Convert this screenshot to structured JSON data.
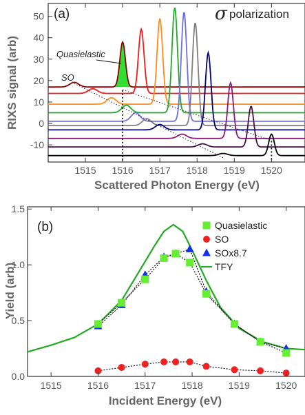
{
  "chart_data": [
    {
      "panel": "(a)",
      "type": "line",
      "title_symbol": "σ",
      "title": "polarization",
      "xlabel": "Scattered Photon Energy (eV)",
      "ylabel": "RIXS signal (arb)",
      "xlim": [
        1514.0,
        1520.9
      ],
      "ylim": [
        -18,
        56
      ],
      "xticks": [
        "1515",
        "1516",
        "1517",
        "1518",
        "1519",
        "1520"
      ],
      "yticks": [
        "-10",
        "0",
        "10",
        "20",
        "30",
        "40",
        "50"
      ],
      "annotations": [
        "Quasielastic",
        "SO"
      ],
      "series": [
        {
          "incident_energy": 1516.0,
          "color": "#8b0000",
          "offset": 17,
          "elastic_height": 21,
          "so_height": 2.2
        },
        {
          "incident_energy": 1516.5,
          "color": "#ee1c1c",
          "offset": 14,
          "elastic_height": 30,
          "so_height": 2.2
        },
        {
          "incident_energy": 1517.0,
          "color": "#ff8c1a",
          "offset": 9,
          "elastic_height": 40,
          "so_height": 3.0
        },
        {
          "incident_energy": 1517.4,
          "color": "#22a82a",
          "offset": 5,
          "elastic_height": 49,
          "so_height": 3.5
        },
        {
          "incident_energy": 1517.65,
          "color": "#6f6fe8",
          "offset": 1,
          "elastic_height": 51,
          "so_height": 4.0
        },
        {
          "incident_energy": 1517.95,
          "color": "#808080",
          "offset": -1,
          "elastic_height": 48,
          "so_height": 3.2
        },
        {
          "incident_energy": 1518.3,
          "color": "#000080",
          "offset": -3,
          "elastic_height": 36,
          "so_height": 2.5
        },
        {
          "incident_energy": 1518.9,
          "color": "#8b1a7a",
          "offset": -7,
          "elastic_height": 26,
          "so_height": 2.0
        },
        {
          "incident_energy": 1519.45,
          "color": "#4a0f40",
          "offset": -11,
          "elastic_height": 19,
          "so_height": 1.5
        },
        {
          "incident_energy": 1520.0,
          "color": "#000000",
          "offset": -15,
          "elastic_height": 10,
          "so_height": 1.0
        }
      ],
      "so_shift_eV": 1.3,
      "quasielastic_marker_x": 1516.0,
      "dotted_guides": [
        {
          "from": [
            1516.0,
            15.7
          ],
          "to": [
            1520.0,
            -8
          ]
        },
        {
          "from": [
            1514.7,
            18.7
          ],
          "to": [
            1518.7,
            -16
          ]
        }
      ]
    },
    {
      "panel": "(b)",
      "type": "scatter",
      "xlabel": "Incident Energy (eV)",
      "ylabel": "Yield (arb)",
      "xlim": [
        1514.5,
        1520.4
      ],
      "ylim": [
        0,
        1.52
      ],
      "xticks": [
        "1515",
        "1516",
        "1517",
        "1518",
        "1519",
        "1520"
      ],
      "yticks": [
        "0.0",
        "0.5",
        "1.0",
        "1.5"
      ],
      "legend_position": "top-right",
      "series": [
        {
          "name": "Quasielastic",
          "marker": "square",
          "color": "#66ee33",
          "x": [
            1516.0,
            1516.5,
            1517.0,
            1517.4,
            1517.65,
            1517.95,
            1518.3,
            1518.9,
            1519.45,
            1520.0
          ],
          "y": [
            0.47,
            0.66,
            0.87,
            1.06,
            1.1,
            1.02,
            0.74,
            0.47,
            0.31,
            0.21
          ]
        },
        {
          "name": "SO",
          "marker": "circle",
          "color": "#ee2222",
          "x": [
            1516.0,
            1516.5,
            1517.0,
            1517.4,
            1517.65,
            1517.95,
            1518.3,
            1518.9,
            1519.45,
            1520.0
          ],
          "y": [
            0.05,
            0.08,
            0.11,
            0.13,
            0.13,
            0.13,
            0.09,
            0.06,
            0.05,
            0.03
          ]
        },
        {
          "name": "SOx8.7",
          "marker": "triangle",
          "color": "#1133ee",
          "x": [
            1516.0,
            1516.5,
            1517.0,
            1517.4,
            1517.65,
            1517.95,
            1518.3,
            1518.9,
            1519.45,
            1520.0
          ],
          "y": [
            0.45,
            0.64,
            0.91,
            1.07,
            1.1,
            1.14,
            0.76,
            0.47,
            0.31,
            0.25
          ]
        },
        {
          "name": "TFY",
          "marker": "line",
          "color": "#22aa22",
          "x": [
            1514.5,
            1515.0,
            1515.5,
            1516.0,
            1516.5,
            1517.0,
            1517.2,
            1517.4,
            1517.6,
            1517.8,
            1518.0,
            1518.3,
            1518.6,
            1519.0,
            1519.5,
            1520.0,
            1520.4
          ],
          "y": [
            0.22,
            0.28,
            0.35,
            0.47,
            0.68,
            1.03,
            1.17,
            1.3,
            1.36,
            1.3,
            1.13,
            0.86,
            0.62,
            0.43,
            0.31,
            0.25,
            0.24
          ]
        }
      ]
    }
  ]
}
